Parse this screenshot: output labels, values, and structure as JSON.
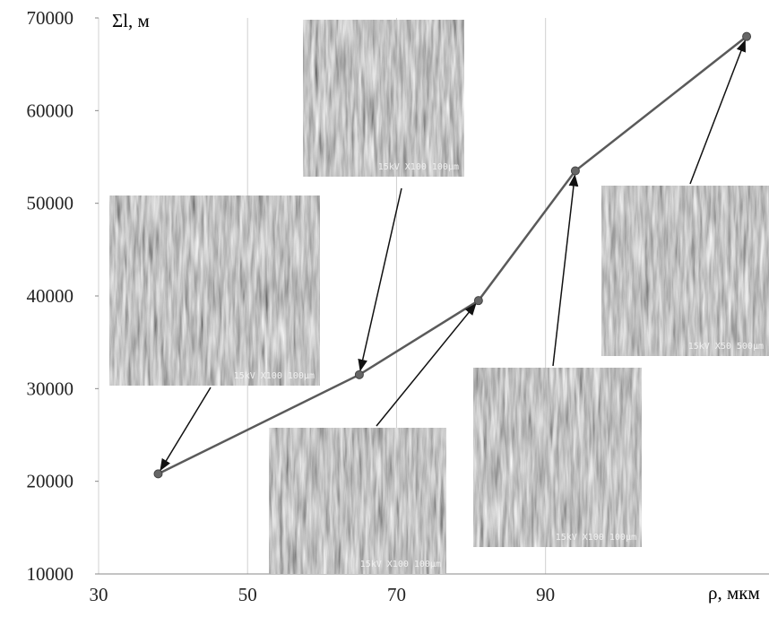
{
  "chart_data": {
    "type": "line",
    "x_label": "ρ, мкм",
    "y_label": "Σl, м",
    "x": [
      38,
      65,
      81,
      94,
      117
    ],
    "series": [
      {
        "color": "#5a5a5a",
        "values": [
          20800,
          31500,
          39500,
          53500,
          68000
        ]
      }
    ],
    "xlim": [
      30,
      120
    ],
    "ylim": [
      10000,
      70000
    ],
    "xticks": [
      30,
      50,
      70,
      90
    ],
    "yticks": [
      10000,
      20000,
      30000,
      40000,
      50000,
      60000,
      70000
    ],
    "annotations": [
      "15kV X100 100μm",
      "15kV X100 100μm",
      "15kV X100 100μm",
      "15kV X100 100μm",
      "15kV X50 500μm"
    ]
  }
}
